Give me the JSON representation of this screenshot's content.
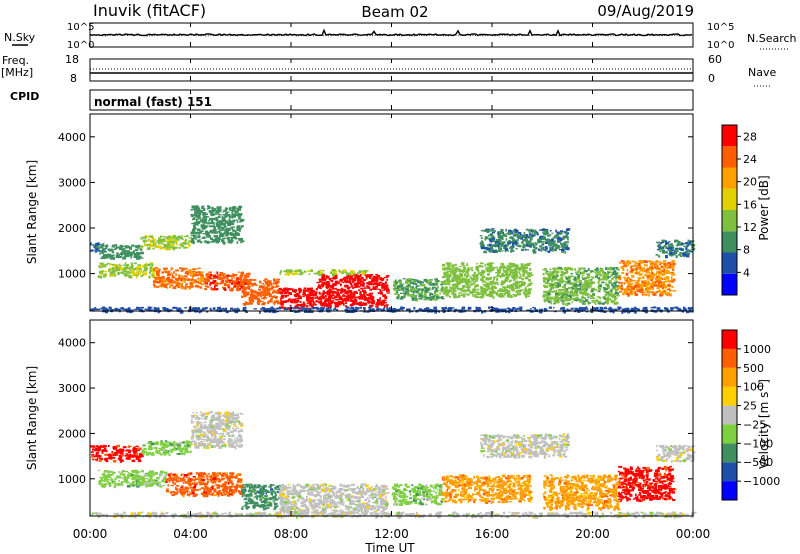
{
  "header": {
    "station": "Inuvik (fitACF)",
    "beam": "Beam 02",
    "date": "09/Aug/2019"
  },
  "top_panels": {
    "nsky_label": "N.Sky",
    "nsky_ticks": [
      "10^5",
      "10^0"
    ],
    "nsearch_label": "N.Search",
    "nsearch_ticks": [
      "10^5",
      "10^0"
    ],
    "freq_label_line1": "Freq.",
    "freq_label_line2": "[MHz]",
    "freq_ticks": [
      "18",
      "8"
    ],
    "nave_label": "Nave",
    "nave_ticks": [
      "60",
      "0"
    ],
    "cpid_label": "CPID",
    "cpid_text": "normal (fast) 151"
  },
  "colors": {
    "power_scale": [
      "#0000ff",
      "#1f4fa8",
      "#3f8f5f",
      "#7fc03f",
      "#e0d000",
      "#ff9f00",
      "#ff5f00",
      "#ff0000"
    ],
    "velocity_scale": [
      "#ff0000",
      "#ff5f00",
      "#ff9f00",
      "#ffcf00",
      "#c0c0c0",
      "#7fd040",
      "#3f8f5f",
      "#1f4fa8",
      "#0000ff"
    ]
  },
  "chart_data": [
    {
      "type": "heatmap",
      "title": "Power",
      "xlabel": "Time UT",
      "ylabel": "Slant Range [km]",
      "x_ticks": [
        "00:00",
        "04:00",
        "08:00",
        "12:00",
        "16:00",
        "20:00",
        "00:00"
      ],
      "xlim_hours": [
        0,
        24
      ],
      "ylim": [
        180,
        4500
      ],
      "y_ticks": [
        1000,
        2000,
        3000,
        4000
      ],
      "colorbar_label": "Power [dB]",
      "colorbar_ticks": [
        4,
        8,
        12,
        16,
        20,
        24,
        28
      ],
      "colorbar_range": [
        0,
        30
      ],
      "regions": [
        {
          "t0": 0.0,
          "t1": 0.5,
          "r0": 1450,
          "r1": 1700,
          "value": 7
        },
        {
          "t0": 0.4,
          "t1": 2.0,
          "r0": 1350,
          "r1": 1650,
          "value": 10
        },
        {
          "t0": 2.0,
          "t1": 4.0,
          "r0": 1550,
          "r1": 1850,
          "value": 14
        },
        {
          "t0": 4.0,
          "t1": 6.0,
          "r0": 1700,
          "r1": 2500,
          "value": 9
        },
        {
          "t0": 0.3,
          "t1": 2.5,
          "r0": 950,
          "r1": 1250,
          "value": 14
        },
        {
          "t0": 2.5,
          "t1": 4.5,
          "r0": 700,
          "r1": 1150,
          "value": 23
        },
        {
          "t0": 4.5,
          "t1": 6.3,
          "r0": 650,
          "r1": 1050,
          "value": 26
        },
        {
          "t0": 6.0,
          "t1": 7.5,
          "r0": 350,
          "r1": 900,
          "value": 24
        },
        {
          "t0": 7.5,
          "t1": 9.0,
          "r0": 250,
          "r1": 700,
          "value": 28
        },
        {
          "t0": 9.0,
          "t1": 11.8,
          "r0": 300,
          "r1": 1000,
          "value": 29
        },
        {
          "t0": 7.5,
          "t1": 11.0,
          "r0": 1000,
          "r1": 1100,
          "value": 14
        },
        {
          "t0": 12.0,
          "t1": 14.0,
          "r0": 450,
          "r1": 900,
          "value": 11
        },
        {
          "t0": 14.0,
          "t1": 17.5,
          "r0": 500,
          "r1": 1250,
          "value": 13
        },
        {
          "t0": 15.5,
          "t1": 19.0,
          "r0": 1500,
          "r1": 2000,
          "value": 8
        },
        {
          "t0": 18.0,
          "t1": 21.0,
          "r0": 350,
          "r1": 1150,
          "value": 12
        },
        {
          "t0": 21.0,
          "t1": 23.2,
          "r0": 550,
          "r1": 1300,
          "value": 22
        },
        {
          "t0": 22.5,
          "t1": 24.0,
          "r0": 1400,
          "r1": 1750,
          "value": 8
        },
        {
          "t0": 0.0,
          "t1": 24.0,
          "r0": 180,
          "r1": 280,
          "value": 5
        }
      ]
    },
    {
      "type": "heatmap",
      "title": "Velocity",
      "xlabel": "Time UT",
      "ylabel": "Slant Range [km]",
      "x_ticks": [
        "00:00",
        "04:00",
        "08:00",
        "12:00",
        "16:00",
        "20:00",
        "00:00"
      ],
      "xlim_hours": [
        0,
        24
      ],
      "ylim": [
        180,
        4500
      ],
      "y_ticks": [
        1000,
        2000,
        3000,
        4000
      ],
      "colorbar_label": "Velocity [m s",
      "colorbar_label_superscript": "-1",
      "colorbar_label_close": "]",
      "colorbar_ticks": [
        "1000",
        "500",
        "100",
        "25",
        "−25",
        "−100",
        "−500",
        "−1000"
      ],
      "regions": [
        {
          "t0": 0.0,
          "t1": 2.0,
          "r0": 1400,
          "r1": 1750,
          "value": 0
        },
        {
          "t0": 2.0,
          "t1": 4.0,
          "r0": 1550,
          "r1": 1850,
          "value": 5
        },
        {
          "t0": 4.0,
          "t1": 6.0,
          "r0": 1700,
          "r1": 2500,
          "value": 4
        },
        {
          "t0": 0.3,
          "t1": 3.0,
          "r0": 850,
          "r1": 1200,
          "value": 5
        },
        {
          "t0": 3.0,
          "t1": 6.0,
          "r0": 650,
          "r1": 1150,
          "value": 1
        },
        {
          "t0": 6.0,
          "t1": 7.5,
          "r0": 350,
          "r1": 900,
          "value": 6
        },
        {
          "t0": 7.5,
          "t1": 11.8,
          "r0": 250,
          "r1": 900,
          "value": 4
        },
        {
          "t0": 12.0,
          "t1": 14.0,
          "r0": 450,
          "r1": 900,
          "value": 5
        },
        {
          "t0": 14.0,
          "t1": 17.5,
          "r0": 500,
          "r1": 1100,
          "value": 2
        },
        {
          "t0": 15.5,
          "t1": 19.0,
          "r0": 1500,
          "r1": 2000,
          "value": 4
        },
        {
          "t0": 18.0,
          "t1": 21.0,
          "r0": 350,
          "r1": 1100,
          "value": 2
        },
        {
          "t0": 21.0,
          "t1": 23.2,
          "r0": 550,
          "r1": 1300,
          "value": 0
        },
        {
          "t0": 22.5,
          "t1": 24.0,
          "r0": 1400,
          "r1": 1750,
          "value": 4
        },
        {
          "t0": 0.0,
          "t1": 24.0,
          "r0": 180,
          "r1": 280,
          "value": 4
        }
      ]
    }
  ]
}
